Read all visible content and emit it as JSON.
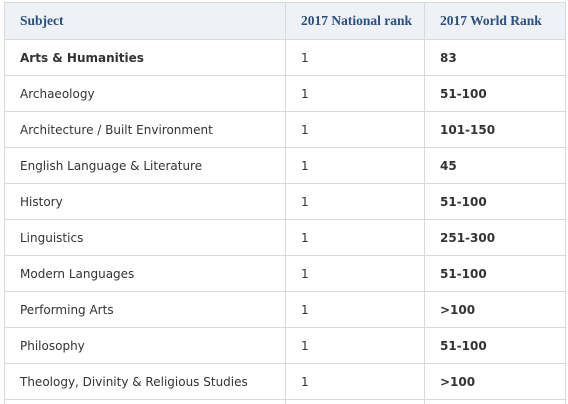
{
  "table": {
    "headers": {
      "subject": "Subject",
      "national": "2017 National rank",
      "world": "2017 World Rank"
    },
    "rows": [
      {
        "subject": "Arts & Humanities",
        "national": "1",
        "world": "83",
        "bold": true
      },
      {
        "subject": "Archaeology",
        "national": "1",
        "world": "51-100"
      },
      {
        "subject": "Architecture / Built Environment",
        "national": "1",
        "world": "101-150"
      },
      {
        "subject": "English Language & Literature",
        "national": "1",
        "world": "45"
      },
      {
        "subject": "History",
        "national": "1",
        "world": "51-100"
      },
      {
        "subject": "Linguistics",
        "national": "1",
        "world": "251-300"
      },
      {
        "subject": "Modern Languages",
        "national": "1",
        "world": "51-100"
      },
      {
        "subject": "Performing Arts",
        "national": "1",
        "world": ">100"
      },
      {
        "subject": "Philosophy",
        "national": "1",
        "world": "51-100"
      },
      {
        "subject": "Theology, Divinity & Religious Studies",
        "national": "1",
        "world": ">100"
      }
    ]
  }
}
